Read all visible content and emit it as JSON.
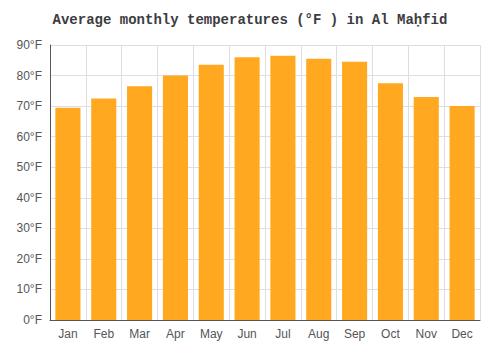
{
  "chart_data": {
    "type": "bar",
    "title": "Average monthly temperatures (°F ) in Al Maḥfid",
    "categories": [
      "Jan",
      "Feb",
      "Mar",
      "Apr",
      "May",
      "Jun",
      "Jul",
      "Aug",
      "Sep",
      "Oct",
      "Nov",
      "Dec"
    ],
    "values": [
      69.5,
      72.5,
      76.5,
      80,
      83.5,
      86,
      86.5,
      85.5,
      84.5,
      77.5,
      73,
      70
    ],
    "color": "#FFA820",
    "ylim": [
      0,
      90
    ],
    "yticks": [
      {
        "value": 0,
        "label": "0°F"
      },
      {
        "value": 10,
        "label": "10°F"
      },
      {
        "value": 20,
        "label": "20°F"
      },
      {
        "value": 30,
        "label": "30°F"
      },
      {
        "value": 40,
        "label": "40°F"
      },
      {
        "value": 50,
        "label": "50°F"
      },
      {
        "value": 60,
        "label": "60°F"
      },
      {
        "value": 70,
        "label": "70°F"
      },
      {
        "value": 80,
        "label": "80°F"
      },
      {
        "value": 90,
        "label": "90°F"
      }
    ],
    "grid": true
  }
}
